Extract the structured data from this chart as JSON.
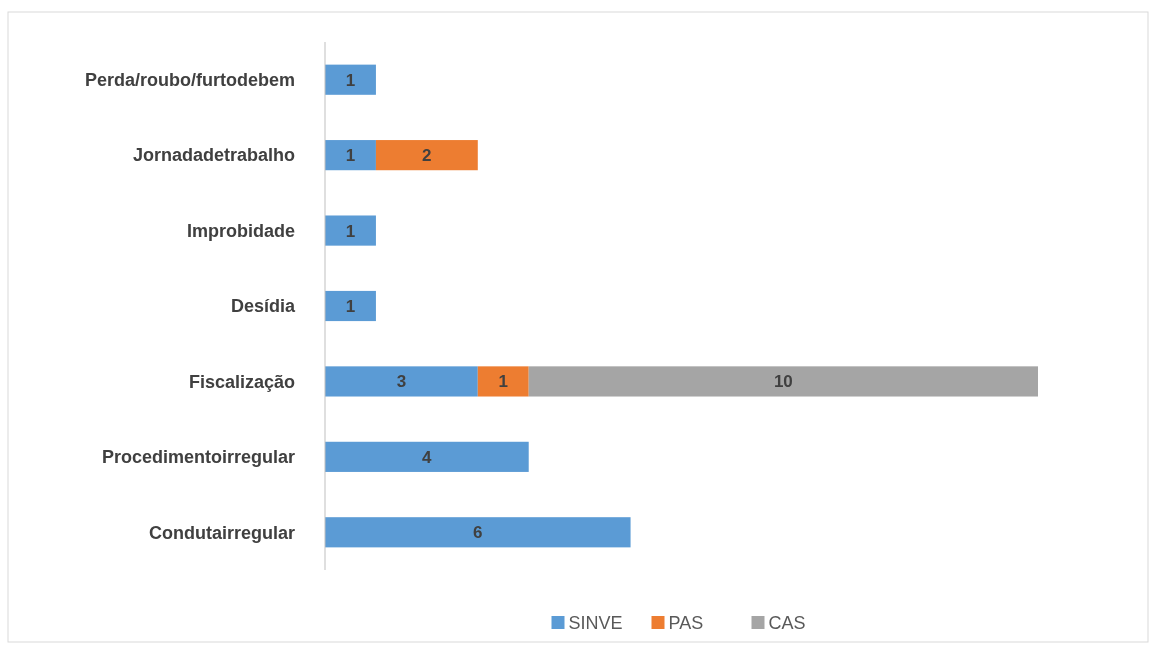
{
  "chart_data": {
    "type": "bar",
    "orientation": "horizontal",
    "stacked": true,
    "data_labels": true,
    "legend": "bottom",
    "grid": false,
    "categories": [
      "Perda/roubo/furtodebem",
      "Jornadadetrabalho",
      "Improbidade",
      "Desídia",
      "Fiscalização",
      "Procedimentoirregular",
      "Condutairregular"
    ],
    "series": [
      {
        "name": "SINVE",
        "color": "#5b9bd5",
        "values": [
          1,
          1,
          1,
          1,
          3,
          4,
          6
        ]
      },
      {
        "name": "PAS",
        "color": "#ed7d31",
        "values": [
          null,
          2,
          null,
          null,
          1,
          null,
          null
        ]
      },
      {
        "name": "CAS",
        "color": "#a5a5a5",
        "values": [
          null,
          null,
          null,
          null,
          10,
          null,
          null
        ]
      }
    ]
  }
}
